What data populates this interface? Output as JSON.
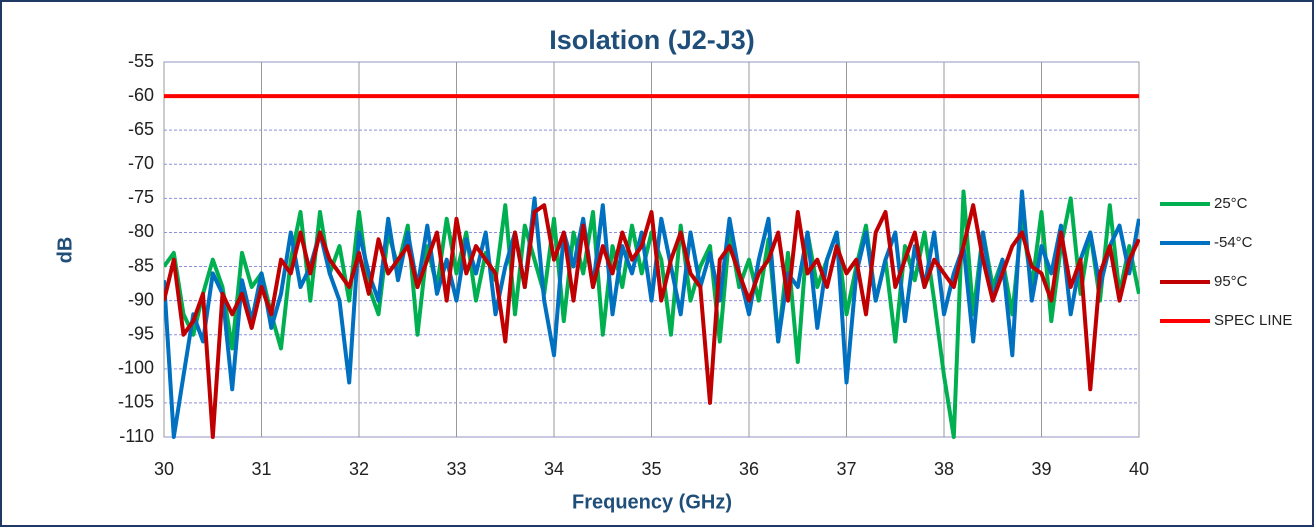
{
  "chart_data": {
    "type": "line",
    "title": "Isolation (J2-J3)",
    "x_label": "Frequency (GHz)",
    "y_label": "dB",
    "x": [
      30.0,
      30.1,
      30.2,
      30.3,
      30.4,
      30.5,
      30.6,
      30.7,
      30.8,
      30.9,
      31.0,
      31.1,
      31.2,
      31.3,
      31.4,
      31.5,
      31.6,
      31.7,
      31.8,
      31.9,
      32.0,
      32.1,
      32.2,
      32.3,
      32.4,
      32.5,
      32.6,
      32.7,
      32.8,
      32.9,
      33.0,
      33.1,
      33.2,
      33.3,
      33.4,
      33.5,
      33.6,
      33.7,
      33.8,
      33.9,
      34.0,
      34.1,
      34.2,
      34.3,
      34.4,
      34.5,
      34.6,
      34.7,
      34.8,
      34.9,
      35.0,
      35.1,
      35.2,
      35.3,
      35.4,
      35.5,
      35.6,
      35.7,
      35.8,
      35.9,
      36.0,
      36.1,
      36.2,
      36.3,
      36.4,
      36.5,
      36.6,
      36.7,
      36.8,
      36.9,
      37.0,
      37.1,
      37.2,
      37.3,
      37.4,
      37.5,
      37.6,
      37.7,
      37.8,
      37.9,
      38.0,
      38.1,
      38.2,
      38.3,
      38.4,
      38.5,
      38.6,
      38.7,
      38.8,
      38.9,
      39.0,
      39.1,
      39.2,
      39.3,
      39.4,
      39.5,
      39.6,
      39.7,
      39.8,
      39.9,
      40.0
    ],
    "series": [
      {
        "name": "25°C",
        "color": "#00b050",
        "values": [
          -85,
          -83,
          -92,
          -95,
          -89,
          -84,
          -88,
          -97,
          -83,
          -88,
          -86,
          -92,
          -97,
          -84,
          -77,
          -90,
          -77,
          -86,
          -82,
          -90,
          -77,
          -88,
          -92,
          -80,
          -85,
          -79,
          -95,
          -82,
          -88,
          -78,
          -86,
          -80,
          -90,
          -83,
          -87,
          -76,
          -92,
          -79,
          -84,
          -89,
          -78,
          -93,
          -80,
          -86,
          -77,
          -95,
          -82,
          -88,
          -79,
          -86,
          -80,
          -84,
          -95,
          -79,
          -90,
          -85,
          -82,
          -96,
          -80,
          -88,
          -84,
          -90,
          -81,
          -96,
          -83,
          -99,
          -80,
          -88,
          -84,
          -80,
          -92,
          -85,
          -79,
          -90,
          -84,
          -96,
          -82,
          -87,
          -80,
          -90,
          -101,
          -110,
          -74,
          -92,
          -80,
          -88,
          -84,
          -92,
          -78,
          -88,
          -77,
          -93,
          -82,
          -75,
          -89,
          -80,
          -90,
          -76,
          -89,
          -82,
          -89
        ]
      },
      {
        "name": "-54°C",
        "color": "#0070c0",
        "values": [
          -87,
          -110,
          -101,
          -92,
          -96,
          -86,
          -89,
          -103,
          -87,
          -93,
          -86,
          -94,
          -89,
          -80,
          -88,
          -85,
          -80,
          -86,
          -90,
          -102,
          -80,
          -86,
          -90,
          -78,
          -87,
          -80,
          -88,
          -79,
          -89,
          -84,
          -90,
          -81,
          -86,
          -80,
          -92,
          -85,
          -80,
          -88,
          -75,
          -90,
          -98,
          -80,
          -85,
          -78,
          -88,
          -76,
          -92,
          -82,
          -86,
          -80,
          -90,
          -78,
          -85,
          -92,
          -80,
          -88,
          -83,
          -90,
          -78,
          -86,
          -92,
          -84,
          -78,
          -96,
          -86,
          -88,
          -80,
          -94,
          -84,
          -80,
          -102,
          -86,
          -80,
          -90,
          -84,
          -80,
          -93,
          -82,
          -88,
          -80,
          -92,
          -86,
          -82,
          -96,
          -80,
          -90,
          -84,
          -98,
          -74,
          -90,
          -82,
          -86,
          -79,
          -92,
          -84,
          -80,
          -88,
          -82,
          -79,
          -86,
          -78
        ]
      },
      {
        "name": "95°C",
        "color": "#c00000",
        "values": [
          -90,
          -84,
          -95,
          -93,
          -89,
          -110,
          -89,
          -92,
          -89,
          -94,
          -88,
          -92,
          -84,
          -86,
          -80,
          -86,
          -80,
          -84,
          -86,
          -88,
          -83,
          -89,
          -81,
          -86,
          -84,
          -82,
          -88,
          -84,
          -80,
          -90,
          -78,
          -86,
          -82,
          -84,
          -86,
          -96,
          -80,
          -88,
          -77,
          -76,
          -84,
          -80,
          -90,
          -79,
          -88,
          -82,
          -86,
          -80,
          -84,
          -82,
          -77,
          -90,
          -84,
          -80,
          -86,
          -88,
          -105,
          -84,
          -82,
          -86,
          -90,
          -86,
          -84,
          -80,
          -90,
          -77,
          -86,
          -84,
          -88,
          -82,
          -86,
          -84,
          -92,
          -80,
          -77,
          -88,
          -84,
          -80,
          -88,
          -84,
          -86,
          -88,
          -82,
          -76,
          -84,
          -90,
          -86,
          -82,
          -80,
          -85,
          -86,
          -90,
          -80,
          -88,
          -84,
          -103,
          -86,
          -82,
          -90,
          -84,
          -81
        ]
      },
      {
        "name": "SPEC LINE",
        "color": "#ff0000",
        "x": [
          30,
          40
        ],
        "values": [
          -60,
          -60
        ]
      }
    ],
    "xlim": [
      30,
      40
    ],
    "xticks": [
      30,
      31,
      32,
      33,
      34,
      35,
      36,
      37,
      38,
      39,
      40
    ],
    "ylim": [
      -110,
      -55
    ],
    "yticks": [
      -110,
      -105,
      -100,
      -95,
      -90,
      -85,
      -80,
      -75,
      -70,
      -65,
      -60,
      -55
    ],
    "grid": true,
    "legend": "right"
  }
}
